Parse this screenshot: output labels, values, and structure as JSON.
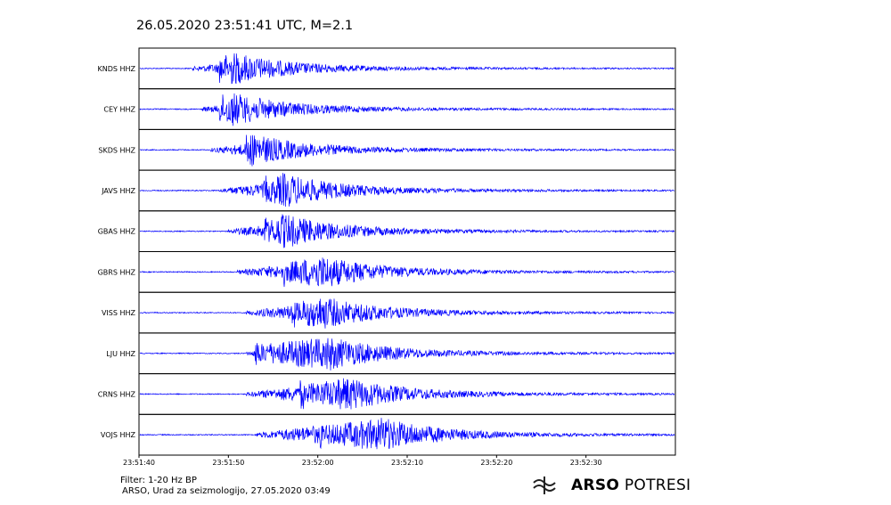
{
  "header": {
    "title": "26.05.2020  23:51:41 UTC, M=2.1"
  },
  "footer": {
    "filter": "Filter: 1-20 Hz BP",
    "credit": "ARSO, Urad za seizmologijo, 27.05.2020  03:49"
  },
  "logo": {
    "icon": "seismic-wave-logo-icon",
    "brand": "ARSO",
    "product": "POTRESI"
  },
  "chart_data": {
    "type": "line",
    "title": "26.05.2020  23:51:41 UTC, M=2.1",
    "xlabel": "",
    "ylabel": "",
    "x_axis_type": "time",
    "xlim": [
      "23:51:40",
      "23:52:40"
    ],
    "x_ticks": [
      "23:51:40",
      "23:51:50",
      "23:52:00",
      "23:52:10",
      "23:52:20",
      "23:52:30"
    ],
    "color": "#0000ff",
    "grid": false,
    "legend": "none",
    "series": [
      {
        "name": "KNDS HHZ",
        "onset": "23:51:46",
        "first_arrival": "23:51:49",
        "peak": "23:51:50"
      },
      {
        "name": "CEY HHZ",
        "onset": "23:51:47",
        "first_arrival": "23:51:49",
        "peak": "23:51:50"
      },
      {
        "name": "SKDS HHZ",
        "onset": "23:51:48",
        "first_arrival": "23:51:52",
        "peak": "23:51:52"
      },
      {
        "name": "JAVS HHZ",
        "onset": "23:51:49",
        "first_arrival": "23:51:54",
        "peak": "23:51:56"
      },
      {
        "name": "GBAS HHZ",
        "onset": "23:51:50",
        "first_arrival": "23:51:54",
        "peak": "23:51:56"
      },
      {
        "name": "GBRS HHZ",
        "onset": "23:51:51",
        "first_arrival": "23:51:56",
        "peak": "23:52:00"
      },
      {
        "name": "VISS HHZ",
        "onset": "23:51:52",
        "first_arrival": "23:51:57",
        "peak": "23:52:00"
      },
      {
        "name": "LJU HHZ",
        "onset": "23:51:52",
        "first_arrival": "23:51:53",
        "peak": "23:52:01"
      },
      {
        "name": "CRNS HHZ",
        "onset": "23:51:52",
        "first_arrival": "23:51:58",
        "peak": "23:52:03"
      },
      {
        "name": "VOJS HHZ",
        "onset": "23:51:53",
        "first_arrival": "23:52:00",
        "peak": "23:52:07"
      }
    ]
  }
}
